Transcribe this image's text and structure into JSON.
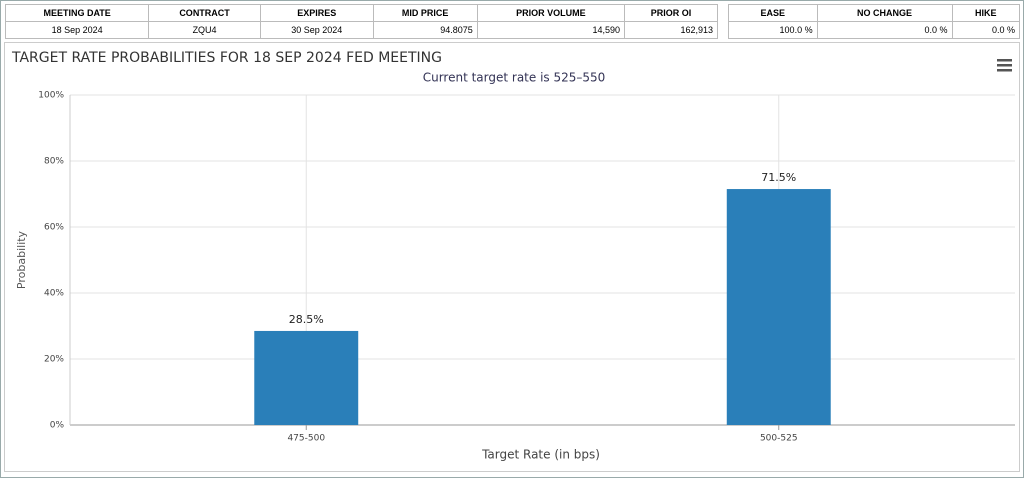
{
  "tables": [
    {
      "headers": [
        "MEETING DATE",
        "CONTRACT",
        "EXPIRES",
        "MID PRICE",
        "PRIOR VOLUME",
        "PRIOR OI"
      ],
      "rows": [
        [
          "18 Sep 2024",
          "ZQU4",
          "30 Sep 2024",
          "94.8075",
          "14,590",
          "162,913"
        ]
      ]
    },
    {
      "headers": [
        "EASE",
        "NO CHANGE",
        "HIKE"
      ],
      "rows": [
        [
          "100.0 %",
          "0.0 %",
          "0.0 %"
        ]
      ]
    }
  ],
  "chart_data": {
    "type": "bar",
    "title": "TARGET RATE PROBABILITIES FOR 18 SEP 2024 FED MEETING",
    "subtitle": "Current target rate is 525–550",
    "x_label": "Target Rate (in bps)",
    "y_label": "Probability",
    "categories": [
      "475-500",
      "500-525"
    ],
    "values": [
      28.5,
      71.5
    ],
    "value_labels": [
      "28.5%",
      "71.5%"
    ],
    "color": "#2a7fb9",
    "ylim": [
      0,
      100
    ],
    "yticks": [
      {
        "value": 0,
        "label": "0%"
      },
      {
        "value": 20,
        "label": "20%"
      },
      {
        "value": 40,
        "label": "40%"
      },
      {
        "value": 60,
        "label": "60%"
      },
      {
        "value": 80,
        "label": "80%"
      },
      {
        "value": 100,
        "label": "100%"
      }
    ],
    "grid": true
  }
}
